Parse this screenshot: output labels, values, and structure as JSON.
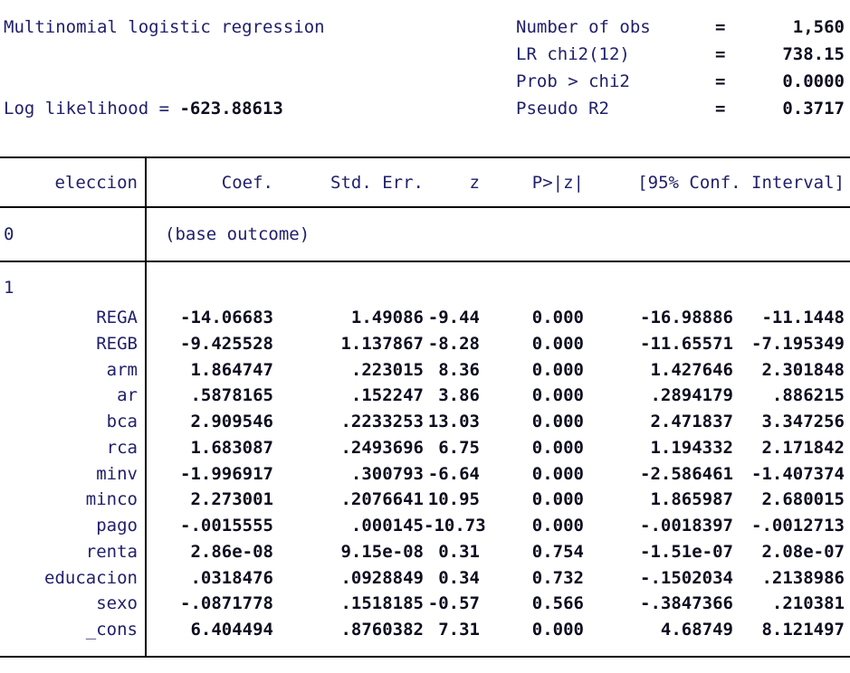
{
  "header": {
    "title": "Multinomial logistic regression",
    "log_likelihood_label": "Log likelihood = ",
    "log_likelihood_value": "-623.88613",
    "stats": [
      {
        "label": "Number of obs",
        "eq": "=",
        "value": "1,560"
      },
      {
        "label": "LR chi2(12)",
        "eq": "=",
        "value": "738.15"
      },
      {
        "label": "Prob > chi2",
        "eq": "=",
        "value": "0.0000"
      },
      {
        "label": "Pseudo R2",
        "eq": "=",
        "value": "0.3717"
      }
    ]
  },
  "table": {
    "columns": [
      "eleccion",
      "Coef.",
      "Std. Err.",
      "z",
      "P>|z|",
      "[95% Conf. Interval]"
    ],
    "base_outcome": {
      "outcome": "0",
      "note": "(base outcome)"
    },
    "section_label": "1",
    "rows": [
      {
        "var": "REGA",
        "coef": "-14.06683",
        "se": "1.49086",
        "z": "-9.44",
        "p": "0.000",
        "lo": "-16.98886",
        "hi": "-11.1448"
      },
      {
        "var": "REGB",
        "coef": "-9.425528",
        "se": "1.137867",
        "z": "-8.28",
        "p": "0.000",
        "lo": "-11.65571",
        "hi": "-7.195349"
      },
      {
        "var": "arm",
        "coef": "1.864747",
        "se": ".223015",
        "z": "8.36",
        "p": "0.000",
        "lo": "1.427646",
        "hi": "2.301848"
      },
      {
        "var": "ar",
        "coef": ".5878165",
        "se": ".152247",
        "z": "3.86",
        "p": "0.000",
        "lo": ".2894179",
        "hi": ".886215"
      },
      {
        "var": "bca",
        "coef": "2.909546",
        "se": ".2233253",
        "z": "13.03",
        "p": "0.000",
        "lo": "2.471837",
        "hi": "3.347256"
      },
      {
        "var": "rca",
        "coef": "1.683087",
        "se": ".2493696",
        "z": "6.75",
        "p": "0.000",
        "lo": "1.194332",
        "hi": "2.171842"
      },
      {
        "var": "minv",
        "coef": "-1.996917",
        "se": ".300793",
        "z": "-6.64",
        "p": "0.000",
        "lo": "-2.586461",
        "hi": "-1.407374"
      },
      {
        "var": "minco",
        "coef": "2.273001",
        "se": ".2076641",
        "z": "10.95",
        "p": "0.000",
        "lo": "1.865987",
        "hi": "2.680015"
      },
      {
        "var": "pago",
        "coef": "-.0015555",
        "se": ".000145",
        "z": "-10.73",
        "p": "0.000",
        "lo": "-.0018397",
        "hi": "-.0012713"
      },
      {
        "var": "renta",
        "coef": "2.86e-08",
        "se": "9.15e-08",
        "z": "0.31",
        "p": "0.754",
        "lo": "-1.51e-07",
        "hi": "2.08e-07"
      },
      {
        "var": "educacion",
        "coef": ".0318476",
        "se": ".0928849",
        "z": "0.34",
        "p": "0.732",
        "lo": "-.1502034",
        "hi": ".2138986"
      },
      {
        "var": "sexo",
        "coef": "-.0871778",
        "se": ".1518185",
        "z": "-0.57",
        "p": "0.566",
        "lo": "-.3847366",
        "hi": ".210381"
      },
      {
        "var": "_cons",
        "coef": "6.404494",
        "se": ".8760382",
        "z": "7.31",
        "p": "0.000",
        "lo": "4.68749",
        "hi": "8.121497"
      }
    ]
  },
  "colors": {
    "label_text": "#20206b",
    "value_text": "#0d0d1f",
    "rule": "#000000",
    "background": "#ffffff"
  }
}
